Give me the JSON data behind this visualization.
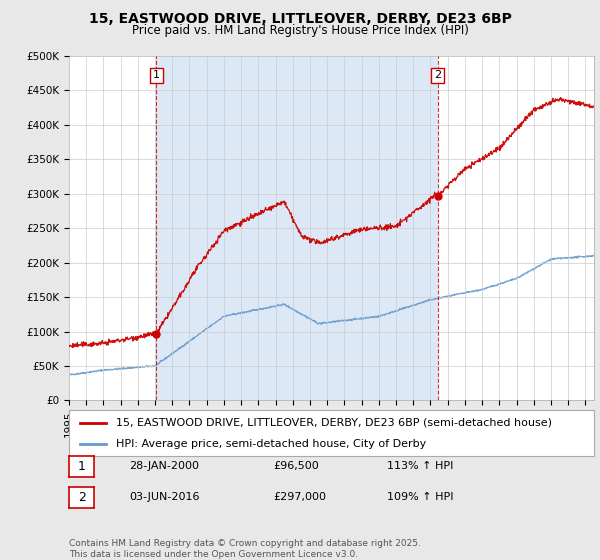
{
  "title": "15, EASTWOOD DRIVE, LITTLEOVER, DERBY, DE23 6BP",
  "subtitle": "Price paid vs. HM Land Registry's House Price Index (HPI)",
  "ylim": [
    0,
    500000
  ],
  "xlim_start": 1995.0,
  "xlim_end": 2025.5,
  "sale1": {
    "date": 2000.07,
    "price": 96500,
    "label": "1",
    "text": "28-JAN-2000",
    "price_text": "£96,500",
    "hpi_text": "113% ↑ HPI"
  },
  "sale2": {
    "date": 2016.42,
    "price": 297000,
    "label": "2",
    "text": "03-JUN-2016",
    "price_text": "£297,000",
    "hpi_text": "109% ↑ HPI"
  },
  "legend_line1": "15, EASTWOOD DRIVE, LITTLEOVER, DERBY, DE23 6BP (semi-detached house)",
  "legend_line2": "HPI: Average price, semi-detached house, City of Derby",
  "footer": "Contains HM Land Registry data © Crown copyright and database right 2025.\nThis data is licensed under the Open Government Licence v3.0.",
  "line_color_red": "#cc0000",
  "line_color_blue": "#6699cc",
  "background_color": "#e8e8e8",
  "plot_bg_color": "#ffffff",
  "shade_color": "#dce8f5",
  "grid_color": "#cccccc",
  "title_fontsize": 10,
  "subtitle_fontsize": 8.5,
  "tick_fontsize": 7.5,
  "legend_fontsize": 8,
  "footer_fontsize": 6.5,
  "yticks": [
    0,
    50000,
    100000,
    150000,
    200000,
    250000,
    300000,
    350000,
    400000,
    450000,
    500000
  ],
  "ylabels": [
    "£0",
    "£50K",
    "£100K",
    "£150K",
    "£200K",
    "£250K",
    "£300K",
    "£350K",
    "£400K",
    "£450K",
    "£500K"
  ]
}
